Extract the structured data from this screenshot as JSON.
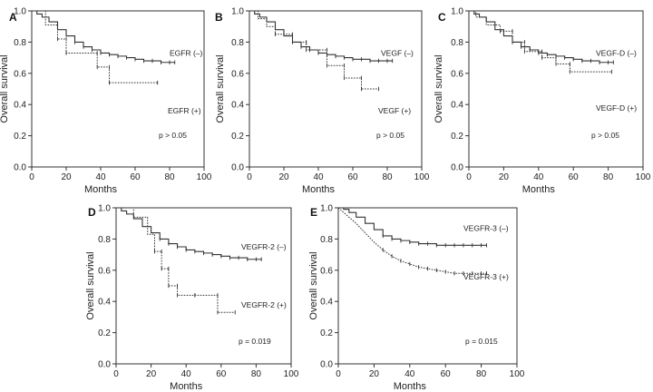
{
  "chart_data": [
    {
      "type": "line",
      "panel": "A",
      "xlabel": "Months",
      "ylabel": "Overall survival",
      "xlim": [
        0,
        100
      ],
      "ylim": [
        0,
        1.0
      ],
      "xticks": [
        "0",
        "20",
        "40",
        "60",
        "80",
        "100"
      ],
      "yticks": [
        "0.0",
        "0.2",
        "0.4",
        "0.6",
        "0.8",
        "1.0"
      ],
      "p_text": "p > 0.05",
      "series": [
        {
          "name": "EGFR (–)",
          "style": "solid",
          "x": [
            0,
            3,
            6,
            10,
            15,
            20,
            25,
            30,
            35,
            40,
            45,
            50,
            55,
            60,
            65,
            70,
            75,
            80,
            83
          ],
          "y": [
            1.0,
            0.98,
            0.96,
            0.93,
            0.88,
            0.84,
            0.8,
            0.77,
            0.75,
            0.73,
            0.72,
            0.71,
            0.7,
            0.69,
            0.68,
            0.68,
            0.67,
            0.67,
            0.67
          ]
        },
        {
          "name": "EGFR (+)",
          "style": "dotted",
          "x": [
            0,
            8,
            8,
            15,
            15,
            20,
            20,
            38,
            38,
            45,
            45,
            73
          ],
          "y": [
            1.0,
            1.0,
            0.91,
            0.91,
            0.82,
            0.82,
            0.73,
            0.73,
            0.64,
            0.64,
            0.54,
            0.54
          ]
        }
      ]
    },
    {
      "type": "line",
      "panel": "B",
      "xlabel": "Months",
      "ylabel": "Overall survival",
      "xlim": [
        0,
        100
      ],
      "ylim": [
        0,
        1.0
      ],
      "xticks": [
        "0",
        "20",
        "40",
        "60",
        "80",
        "100"
      ],
      "yticks": [
        "0.0",
        "0.2",
        "0.4",
        "0.6",
        "0.8",
        "1.0"
      ],
      "p_text": "p > 0.05",
      "series": [
        {
          "name": "VEGF (–)",
          "style": "solid",
          "x": [
            0,
            3,
            6,
            10,
            15,
            20,
            25,
            30,
            35,
            40,
            45,
            50,
            55,
            60,
            65,
            70,
            75,
            80,
            83
          ],
          "y": [
            1.0,
            0.98,
            0.96,
            0.93,
            0.88,
            0.84,
            0.8,
            0.77,
            0.75,
            0.73,
            0.72,
            0.71,
            0.7,
            0.69,
            0.69,
            0.68,
            0.68,
            0.68,
            0.68
          ]
        },
        {
          "name": "VEGF (+)",
          "style": "dotted",
          "x": [
            0,
            5,
            5,
            10,
            10,
            15,
            15,
            25,
            25,
            33,
            33,
            45,
            45,
            55,
            55,
            65,
            65,
            75
          ],
          "y": [
            1.0,
            1.0,
            0.95,
            0.95,
            0.9,
            0.9,
            0.85,
            0.85,
            0.8,
            0.8,
            0.75,
            0.75,
            0.65,
            0.65,
            0.57,
            0.57,
            0.5,
            0.5
          ]
        }
      ]
    },
    {
      "type": "line",
      "panel": "C",
      "xlabel": "Months",
      "ylabel": "Overall survival",
      "xlim": [
        0,
        100
      ],
      "ylim": [
        0,
        1.0
      ],
      "xticks": [
        "0",
        "20",
        "40",
        "60",
        "80",
        "100"
      ],
      "yticks": [
        "0.0",
        "0.2",
        "0.4",
        "0.6",
        "0.8",
        "1.0"
      ],
      "p_text": "p > 0.05",
      "series": [
        {
          "name": "VEGF-D (–)",
          "style": "solid",
          "x": [
            0,
            3,
            6,
            10,
            15,
            20,
            25,
            30,
            35,
            40,
            45,
            50,
            55,
            60,
            65,
            70,
            75,
            80,
            83
          ],
          "y": [
            1.0,
            0.98,
            0.96,
            0.93,
            0.88,
            0.84,
            0.8,
            0.77,
            0.75,
            0.73,
            0.72,
            0.71,
            0.7,
            0.69,
            0.68,
            0.68,
            0.67,
            0.67,
            0.67
          ]
        },
        {
          "name": "VEGF-D (+)",
          "style": "dotted",
          "x": [
            0,
            4,
            4,
            10,
            10,
            18,
            18,
            25,
            25,
            32,
            32,
            42,
            42,
            50,
            50,
            58,
            58,
            82
          ],
          "y": [
            1.0,
            1.0,
            0.96,
            0.96,
            0.91,
            0.91,
            0.87,
            0.87,
            0.8,
            0.8,
            0.74,
            0.74,
            0.7,
            0.7,
            0.66,
            0.66,
            0.61,
            0.61
          ]
        }
      ]
    },
    {
      "type": "line",
      "panel": "D",
      "xlabel": "Months",
      "ylabel": "Overall survival",
      "xlim": [
        0,
        100
      ],
      "ylim": [
        0,
        1.0
      ],
      "xticks": [
        "0",
        "20",
        "40",
        "60",
        "80",
        "100"
      ],
      "yticks": [
        "0.0",
        "0.2",
        "0.4",
        "0.6",
        "0.8",
        "1.0"
      ],
      "p_text": "p = 0.019",
      "series": [
        {
          "name": "VEGFR-2 (–)",
          "style": "solid",
          "x": [
            0,
            3,
            6,
            10,
            15,
            20,
            25,
            30,
            35,
            40,
            45,
            50,
            55,
            60,
            65,
            70,
            75,
            80,
            83
          ],
          "y": [
            1.0,
            0.98,
            0.96,
            0.93,
            0.88,
            0.84,
            0.8,
            0.77,
            0.75,
            0.73,
            0.72,
            0.71,
            0.7,
            0.69,
            0.68,
            0.68,
            0.67,
            0.67,
            0.67
          ]
        },
        {
          "name": "VEGFR-2 (+)",
          "style": "dotted",
          "x": [
            0,
            10,
            10,
            18,
            18,
            22,
            22,
            26,
            26,
            30,
            30,
            35,
            35,
            45,
            45,
            58,
            58,
            68
          ],
          "y": [
            1.0,
            1.0,
            0.94,
            0.94,
            0.83,
            0.83,
            0.72,
            0.72,
            0.61,
            0.61,
            0.5,
            0.5,
            0.44,
            0.44,
            0.44,
            0.44,
            0.33,
            0.33
          ]
        }
      ]
    },
    {
      "type": "line",
      "panel": "E",
      "xlabel": "Months",
      "ylabel": "Overall survival",
      "xlim": [
        0,
        100
      ],
      "ylim": [
        0,
        1.0
      ],
      "xticks": [
        "0",
        "20",
        "40",
        "60",
        "80",
        "100"
      ],
      "yticks": [
        "0.0",
        "0.2",
        "0.4",
        "0.6",
        "0.8",
        "1.0"
      ],
      "p_text": "p = 0.015",
      "series": [
        {
          "name": "VEGFR-3 (–)",
          "style": "solid",
          "x": [
            0,
            3,
            6,
            10,
            15,
            20,
            25,
            30,
            35,
            40,
            45,
            50,
            55,
            60,
            65,
            70,
            75,
            80,
            83
          ],
          "y": [
            1.0,
            0.99,
            0.97,
            0.94,
            0.9,
            0.86,
            0.82,
            0.8,
            0.79,
            0.78,
            0.77,
            0.77,
            0.76,
            0.76,
            0.76,
            0.76,
            0.76,
            0.76,
            0.76
          ]
        },
        {
          "name": "VEGFR-3 (+)",
          "style": "dotted",
          "x": [
            0,
            3,
            6,
            10,
            15,
            20,
            25,
            30,
            35,
            40,
            45,
            50,
            55,
            60,
            65,
            70,
            75,
            80,
            83
          ],
          "y": [
            1.0,
            0.97,
            0.94,
            0.9,
            0.84,
            0.78,
            0.73,
            0.69,
            0.66,
            0.64,
            0.62,
            0.61,
            0.6,
            0.59,
            0.58,
            0.58,
            0.58,
            0.58,
            0.58
          ]
        }
      ]
    }
  ]
}
